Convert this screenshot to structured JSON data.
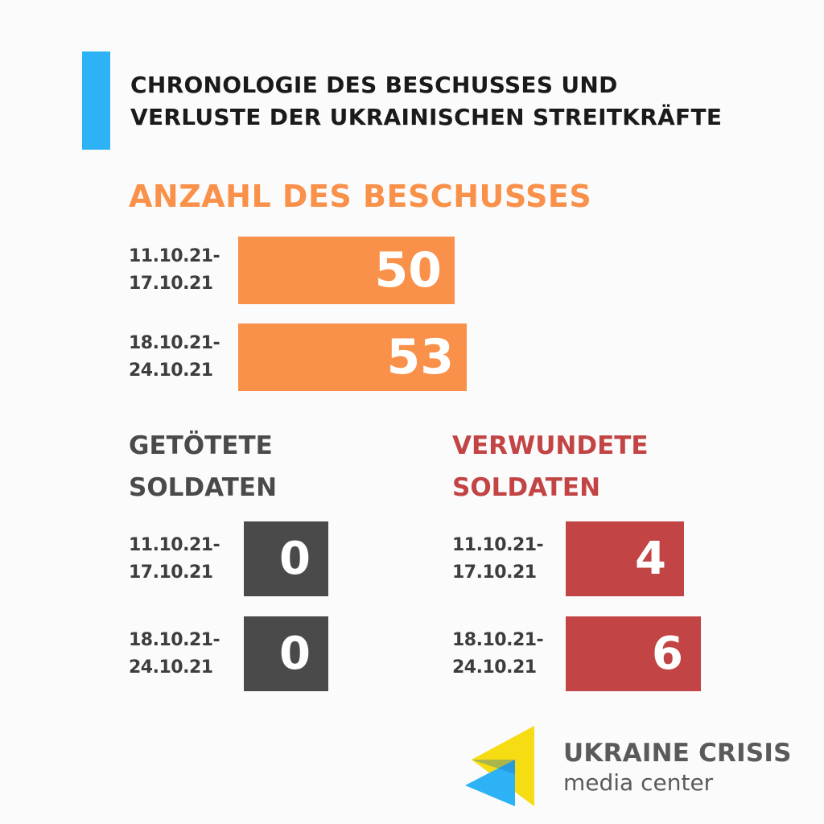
{
  "title": {
    "line1": "CHRONOLOGIE DES BESCHUSSES UND",
    "line2": "VERLUSTE DER UKRAINISCHEN STREITKRÄFTE"
  },
  "colors": {
    "accent": "#2db2f6",
    "shelling": "#f9914a",
    "killed": "#4a4a4a",
    "wounded": "#c24444"
  },
  "chart_data": [
    {
      "type": "bar",
      "title": "ANZAHL DES BESCHUSSES",
      "categories": [
        [
          "11.10.21-",
          "17.10.21"
        ],
        [
          "18.10.21-",
          "24.10.21"
        ]
      ],
      "values": [
        50,
        53
      ]
    },
    {
      "type": "bar",
      "title": [
        "GETÖTETE",
        "SOLDATEN"
      ],
      "categories": [
        [
          "11.10.21-",
          "17.10.21"
        ],
        [
          "18.10.21-",
          "24.10.21"
        ]
      ],
      "values": [
        0,
        0
      ]
    },
    {
      "type": "bar",
      "title": [
        "VERWUNDETE",
        "SOLDATEN"
      ],
      "categories": [
        [
          "11.10.21-",
          "17.10.21"
        ],
        [
          "18.10.21-",
          "24.10.21"
        ]
      ],
      "values": [
        4,
        6
      ]
    }
  ],
  "logo": {
    "line1": "UKRAINE CRISIS",
    "line2": "media center"
  }
}
